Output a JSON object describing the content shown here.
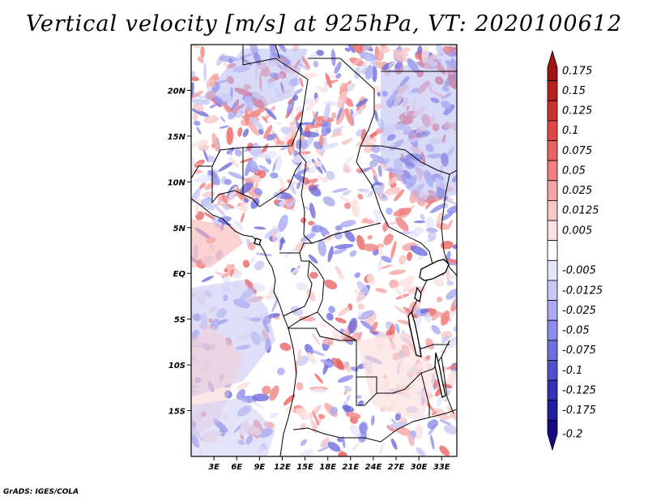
{
  "title": "Vertical velocity [m/s] at 925hPa, VT: 2020100612",
  "footer": "GrADS: IGES/COLA",
  "map": {
    "lon_range": [
      0,
      35
    ],
    "lat_range": [
      -20,
      25
    ],
    "lat_ticks": [
      {
        "value": 20,
        "label": "20N"
      },
      {
        "value": 15,
        "label": "15N"
      },
      {
        "value": 10,
        "label": "10N"
      },
      {
        "value": 5,
        "label": "5N"
      },
      {
        "value": 0,
        "label": "EQ"
      },
      {
        "value": -5,
        "label": "5S"
      },
      {
        "value": -10,
        "label": "10S"
      },
      {
        "value": -15,
        "label": "15S"
      }
    ],
    "lon_ticks": [
      {
        "value": 3,
        "label": "3E"
      },
      {
        "value": 6,
        "label": "6E"
      },
      {
        "value": 9,
        "label": "9E"
      },
      {
        "value": 12,
        "label": "12E"
      },
      {
        "value": 15,
        "label": "15E"
      },
      {
        "value": 18,
        "label": "18E"
      },
      {
        "value": 21,
        "label": "21E"
      },
      {
        "value": 24,
        "label": "24E"
      },
      {
        "value": 27,
        "label": "27E"
      },
      {
        "value": 30,
        "label": "30E"
      },
      {
        "value": 33,
        "label": "33E"
      }
    ]
  },
  "colorbar": {
    "levels": [
      {
        "label": "0.175",
        "color": "#a01414"
      },
      {
        "label": "0.15",
        "color": "#b82020"
      },
      {
        "label": "0.125",
        "color": "#d03232"
      },
      {
        "label": "0.1",
        "color": "#e04646"
      },
      {
        "label": "0.075",
        "color": "#e86464"
      },
      {
        "label": "0.05",
        "color": "#f08282"
      },
      {
        "label": "0.025",
        "color": "#f5a5a5"
      },
      {
        "label": "0.0125",
        "color": "#f8c8c8"
      },
      {
        "label": "0.005",
        "color": "#fbe1e1"
      },
      {
        "label": "",
        "color": "#ffffff"
      },
      {
        "label": "-0.005",
        "color": "#e6e6fb"
      },
      {
        "label": "-0.0125",
        "color": "#c8c8f5"
      },
      {
        "label": "-0.025",
        "color": "#aaaaf0"
      },
      {
        "label": "-0.05",
        "color": "#8c8ceb"
      },
      {
        "label": "-0.075",
        "color": "#6e6edc"
      },
      {
        "label": "-0.1",
        "color": "#5050cd"
      },
      {
        "label": "-0.125",
        "color": "#3232b9"
      },
      {
        "label": "-0.175",
        "color": "#1e1ea0"
      },
      {
        "label": "-0.2",
        "color": "#140a82"
      }
    ]
  }
}
